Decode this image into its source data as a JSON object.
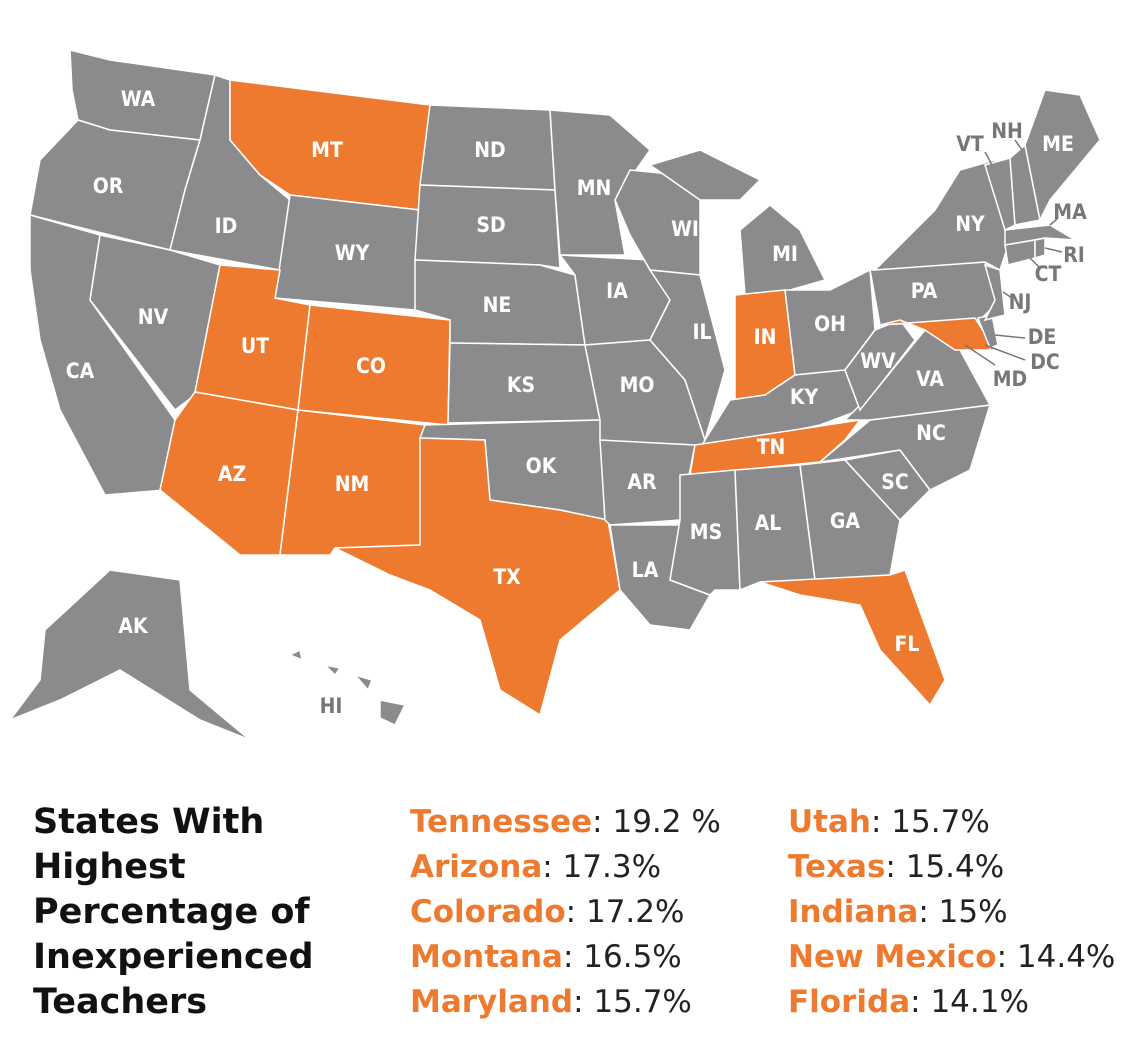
{
  "map": {
    "base_color": "#8b8b8d",
    "highlight_color": "#ed7a2f",
    "states": [
      {
        "label": "WA",
        "highlighted": false
      },
      {
        "label": "OR",
        "highlighted": false
      },
      {
        "label": "CA",
        "highlighted": false
      },
      {
        "label": "NV",
        "highlighted": false
      },
      {
        "label": "ID",
        "highlighted": false
      },
      {
        "label": "MT",
        "highlighted": true
      },
      {
        "label": "WY",
        "highlighted": false
      },
      {
        "label": "UT",
        "highlighted": true
      },
      {
        "label": "CO",
        "highlighted": true
      },
      {
        "label": "AZ",
        "highlighted": true
      },
      {
        "label": "NM",
        "highlighted": true
      },
      {
        "label": "ND",
        "highlighted": false
      },
      {
        "label": "SD",
        "highlighted": false
      },
      {
        "label": "NE",
        "highlighted": false
      },
      {
        "label": "KS",
        "highlighted": false
      },
      {
        "label": "OK",
        "highlighted": false
      },
      {
        "label": "TX",
        "highlighted": true
      },
      {
        "label": "MN",
        "highlighted": false
      },
      {
        "label": "IA",
        "highlighted": false
      },
      {
        "label": "MO",
        "highlighted": false
      },
      {
        "label": "AR",
        "highlighted": false
      },
      {
        "label": "LA",
        "highlighted": false
      },
      {
        "label": "WI",
        "highlighted": false
      },
      {
        "label": "IL",
        "highlighted": false
      },
      {
        "label": "MI",
        "highlighted": false
      },
      {
        "label": "IN",
        "highlighted": true
      },
      {
        "label": "OH",
        "highlighted": false
      },
      {
        "label": "KY",
        "highlighted": false
      },
      {
        "label": "TN",
        "highlighted": true
      },
      {
        "label": "MS",
        "highlighted": false
      },
      {
        "label": "AL",
        "highlighted": false
      },
      {
        "label": "GA",
        "highlighted": false
      },
      {
        "label": "FL",
        "highlighted": true
      },
      {
        "label": "SC",
        "highlighted": false
      },
      {
        "label": "NC",
        "highlighted": false
      },
      {
        "label": "VA",
        "highlighted": false
      },
      {
        "label": "WV",
        "highlighted": false
      },
      {
        "label": "PA",
        "highlighted": false
      },
      {
        "label": "NY",
        "highlighted": false
      },
      {
        "label": "MD",
        "highlighted": true
      },
      {
        "label": "DE",
        "highlighted": false
      },
      {
        "label": "DC",
        "highlighted": false
      },
      {
        "label": "NJ",
        "highlighted": false
      },
      {
        "label": "CT",
        "highlighted": false
      },
      {
        "label": "RI",
        "highlighted": false
      },
      {
        "label": "MA",
        "highlighted": false
      },
      {
        "label": "VT",
        "highlighted": false
      },
      {
        "label": "NH",
        "highlighted": false
      },
      {
        "label": "ME",
        "highlighted": false
      },
      {
        "label": "AK",
        "highlighted": false
      },
      {
        "label": "HI",
        "highlighted": false
      }
    ]
  },
  "legend": {
    "title_lines": [
      "States With",
      "Highest",
      "Percentage of",
      "Inexperienced",
      "Teachers"
    ],
    "separator": ": ",
    "items": [
      {
        "state": "Tennessee",
        "value": "19.2 %"
      },
      {
        "state": "Arizona",
        "value": "17.3%"
      },
      {
        "state": "Colorado",
        "value": "17.2%"
      },
      {
        "state": "Montana",
        "value": "16.5%"
      },
      {
        "state": "Maryland",
        "value": "15.7%"
      },
      {
        "state": "Utah",
        "value": "15.7%"
      },
      {
        "state": "Texas",
        "value": "15.4%"
      },
      {
        "state": "Indiana",
        "value": "15%"
      },
      {
        "state": "New Mexico",
        "value": "14.4%"
      },
      {
        "state": "Florida",
        "value": "14.1%"
      }
    ]
  }
}
